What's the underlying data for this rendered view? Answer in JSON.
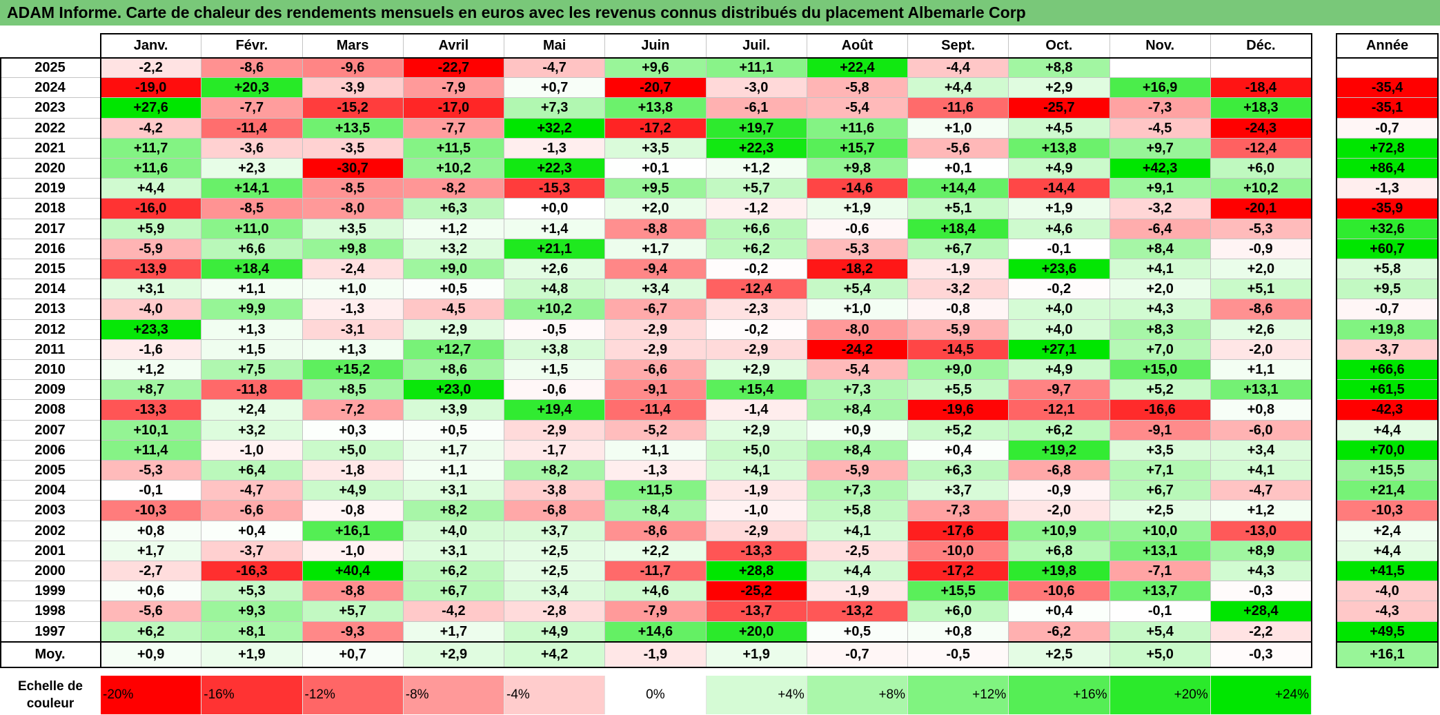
{
  "colors": {
    "title_bar": "#79c879",
    "frame": "#000000",
    "grid": "#c4c4c4"
  },
  "chart_data": {
    "type": "heatmap",
    "title": "ADAM Informe. Carte de chaleur des rendements mensuels en euros avec les revenus connus distribués du placement Albemarle Corp",
    "columns": [
      "Janv.",
      "Févr.",
      "Mars",
      "Avril",
      "Mai",
      "Juin",
      "Juil.",
      "Août",
      "Sept.",
      "Oct.",
      "Nov.",
      "Déc."
    ],
    "total_column": "Année",
    "rows": [
      {
        "label": "2025",
        "values": [
          "-2,2",
          "-8,6",
          "-9,6",
          "-22,7",
          "-4,7",
          "+9,6",
          "+11,1",
          "+22,4",
          "-4,4",
          "+8,8",
          "",
          ""
        ],
        "total": ""
      },
      {
        "label": "2024",
        "values": [
          "-19,0",
          "+20,3",
          "-3,9",
          "-7,9",
          "+0,7",
          "-20,7",
          "-3,0",
          "-5,8",
          "+4,4",
          "+2,9",
          "+16,9",
          "-18,4"
        ],
        "total": "-35,4"
      },
      {
        "label": "2023",
        "values": [
          "+27,6",
          "-7,7",
          "-15,2",
          "-17,0",
          "+7,3",
          "+13,8",
          "-6,1",
          "-5,4",
          "-11,6",
          "-25,7",
          "-7,3",
          "+18,3"
        ],
        "total": "-35,1"
      },
      {
        "label": "2022",
        "values": [
          "-4,2",
          "-11,4",
          "+13,5",
          "-7,7",
          "+32,2",
          "-17,2",
          "+19,7",
          "+11,6",
          "+1,0",
          "+4,5",
          "-4,5",
          "-24,3"
        ],
        "total": "-0,7"
      },
      {
        "label": "2021",
        "values": [
          "+11,7",
          "-3,6",
          "-3,5",
          "+11,5",
          "-1,3",
          "+3,5",
          "+22,3",
          "+15,7",
          "-5,6",
          "+13,8",
          "+9,7",
          "-12,4"
        ],
        "total": "+72,8"
      },
      {
        "label": "2020",
        "values": [
          "+11,6",
          "+2,3",
          "-30,7",
          "+10,2",
          "+22,3",
          "+0,1",
          "+1,2",
          "+9,8",
          "+0,1",
          "+4,9",
          "+42,3",
          "+6,0"
        ],
        "total": "+86,4"
      },
      {
        "label": "2019",
        "values": [
          "+4,4",
          "+14,1",
          "-8,5",
          "-8,2",
          "-15,3",
          "+9,5",
          "+5,7",
          "-14,6",
          "+14,4",
          "-14,4",
          "+9,1",
          "+10,2"
        ],
        "total": "-1,3"
      },
      {
        "label": "2018",
        "values": [
          "-16,0",
          "-8,5",
          "-8,0",
          "+6,3",
          "+0,0",
          "+2,0",
          "-1,2",
          "+1,9",
          "+5,1",
          "+1,9",
          "-3,2",
          "-20,1"
        ],
        "total": "-35,9"
      },
      {
        "label": "2017",
        "values": [
          "+5,9",
          "+11,0",
          "+3,5",
          "+1,2",
          "+1,4",
          "-8,8",
          "+6,6",
          "-0,6",
          "+18,4",
          "+4,6",
          "-6,4",
          "-5,3"
        ],
        "total": "+32,6"
      },
      {
        "label": "2016",
        "values": [
          "-5,9",
          "+6,6",
          "+9,8",
          "+3,2",
          "+21,1",
          "+1,7",
          "+6,2",
          "-5,3",
          "+6,7",
          "-0,1",
          "+8,4",
          "-0,9"
        ],
        "total": "+60,7"
      },
      {
        "label": "2015",
        "values": [
          "-13,9",
          "+18,4",
          "-2,4",
          "+9,0",
          "+2,6",
          "-9,4",
          "-0,2",
          "-18,2",
          "-1,9",
          "+23,6",
          "+4,1",
          "+2,0"
        ],
        "total": "+5,8"
      },
      {
        "label": "2014",
        "values": [
          "+3,1",
          "+1,1",
          "+1,0",
          "+0,5",
          "+4,8",
          "+3,4",
          "-12,4",
          "+5,4",
          "-3,2",
          "-0,2",
          "+2,0",
          "+5,1"
        ],
        "total": "+9,5"
      },
      {
        "label": "2013",
        "values": [
          "-4,0",
          "+9,9",
          "-1,3",
          "-4,5",
          "+10,2",
          "-6,7",
          "-2,3",
          "+1,0",
          "-0,8",
          "+4,0",
          "+4,3",
          "-8,6"
        ],
        "total": "-0,7"
      },
      {
        "label": "2012",
        "values": [
          "+23,3",
          "+1,3",
          "-3,1",
          "+2,9",
          "-0,5",
          "-2,9",
          "-0,2",
          "-8,0",
          "-5,9",
          "+4,0",
          "+8,3",
          "+2,6"
        ],
        "total": "+19,8"
      },
      {
        "label": "2011",
        "values": [
          "-1,6",
          "+1,5",
          "+1,3",
          "+12,7",
          "+3,8",
          "-2,9",
          "-2,9",
          "-24,2",
          "-14,5",
          "+27,1",
          "+7,0",
          "-2,0"
        ],
        "total": "-3,7"
      },
      {
        "label": "2010",
        "values": [
          "+1,2",
          "+7,5",
          "+15,2",
          "+8,6",
          "+1,5",
          "-6,6",
          "+2,9",
          "-5,4",
          "+9,0",
          "+4,9",
          "+15,0",
          "+1,1"
        ],
        "total": "+66,6"
      },
      {
        "label": "2009",
        "values": [
          "+8,7",
          "-11,8",
          "+8,5",
          "+23,0",
          "-0,6",
          "-9,1",
          "+15,4",
          "+7,3",
          "+5,5",
          "-9,7",
          "+5,2",
          "+13,1"
        ],
        "total": "+61,5"
      },
      {
        "label": "2008",
        "values": [
          "-13,3",
          "+2,4",
          "-7,2",
          "+3,9",
          "+19,4",
          "-11,4",
          "-1,4",
          "+8,4",
          "-19,6",
          "-12,1",
          "-16,6",
          "+0,8"
        ],
        "total": "-42,3"
      },
      {
        "label": "2007",
        "values": [
          "+10,1",
          "+3,2",
          "+0,3",
          "+0,5",
          "-2,9",
          "-5,2",
          "+2,9",
          "+0,9",
          "+5,2",
          "+6,2",
          "-9,1",
          "-6,0"
        ],
        "total": "+4,4"
      },
      {
        "label": "2006",
        "values": [
          "+11,4",
          "-1,0",
          "+5,0",
          "+1,7",
          "-1,7",
          "+1,1",
          "+5,0",
          "+8,4",
          "+0,4",
          "+19,2",
          "+3,5",
          "+3,4"
        ],
        "total": "+70,0"
      },
      {
        "label": "2005",
        "values": [
          "-5,3",
          "+6,4",
          "-1,8",
          "+1,1",
          "+8,2",
          "-1,3",
          "+4,1",
          "-5,9",
          "+6,3",
          "-6,8",
          "+7,1",
          "+4,1"
        ],
        "total": "+15,5"
      },
      {
        "label": "2004",
        "values": [
          "-0,1",
          "-4,7",
          "+4,9",
          "+3,1",
          "-3,8",
          "+11,5",
          "-1,9",
          "+7,3",
          "+3,7",
          "-0,9",
          "+6,7",
          "-4,7"
        ],
        "total": "+21,4"
      },
      {
        "label": "2003",
        "values": [
          "-10,3",
          "-6,6",
          "-0,8",
          "+8,2",
          "-6,8",
          "+8,4",
          "-1,0",
          "+5,8",
          "-7,3",
          "-2,0",
          "+2,5",
          "+1,2"
        ],
        "total": "-10,3"
      },
      {
        "label": "2002",
        "values": [
          "+0,8",
          "+0,4",
          "+16,1",
          "+4,0",
          "+3,7",
          "-8,6",
          "-2,9",
          "+4,1",
          "-17,6",
          "+10,9",
          "+10,0",
          "-13,0"
        ],
        "total": "+2,4"
      },
      {
        "label": "2001",
        "values": [
          "+1,7",
          "-3,7",
          "-1,0",
          "+3,1",
          "+2,5",
          "+2,2",
          "-13,3",
          "-2,5",
          "-10,0",
          "+6,8",
          "+13,1",
          "+8,9"
        ],
        "total": "+4,4"
      },
      {
        "label": "2000",
        "values": [
          "-2,7",
          "-16,3",
          "+40,4",
          "+6,2",
          "+2,5",
          "-11,7",
          "+28,8",
          "+4,4",
          "-17,2",
          "+19,8",
          "-7,1",
          "+4,3"
        ],
        "total": "+41,5"
      },
      {
        "label": "1999",
        "values": [
          "+0,6",
          "+5,3",
          "-8,8",
          "+6,7",
          "+3,4",
          "+4,6",
          "-25,2",
          "-1,9",
          "+15,5",
          "-10,6",
          "+13,7",
          "-0,3"
        ],
        "total": "-4,0"
      },
      {
        "label": "1998",
        "values": [
          "-5,6",
          "+9,3",
          "+5,7",
          "-4,2",
          "-2,8",
          "-7,9",
          "-13,7",
          "-13,2",
          "+6,0",
          "+0,4",
          "-0,1",
          "+28,4"
        ],
        "total": "-4,3"
      },
      {
        "label": "1997",
        "values": [
          "+6,2",
          "+8,1",
          "-9,3",
          "+1,7",
          "+4,9",
          "+14,6",
          "+20,0",
          "+0,5",
          "+0,8",
          "-6,2",
          "+5,4",
          "-2,2"
        ],
        "total": "+49,5"
      }
    ],
    "average_row": {
      "label": "Moy.",
      "values": [
        "+0,9",
        "+1,9",
        "+0,7",
        "+2,9",
        "+4,2",
        "-1,9",
        "+1,9",
        "-0,7",
        "-0,5",
        "+2,5",
        "+5,0",
        "-0,3"
      ],
      "total": "+16,1"
    },
    "color_scale": {
      "label": "Echelle de couleur",
      "steps": [
        "-20%",
        "-16%",
        "-12%",
        "-8%",
        "-4%",
        "0%",
        "+4%",
        "+8%",
        "+12%",
        "+16%",
        "+20%",
        "+24%"
      ],
      "negative_color": "#ff0000",
      "neutral_color": "#ffffff",
      "positive_color": "#00e600"
    }
  }
}
